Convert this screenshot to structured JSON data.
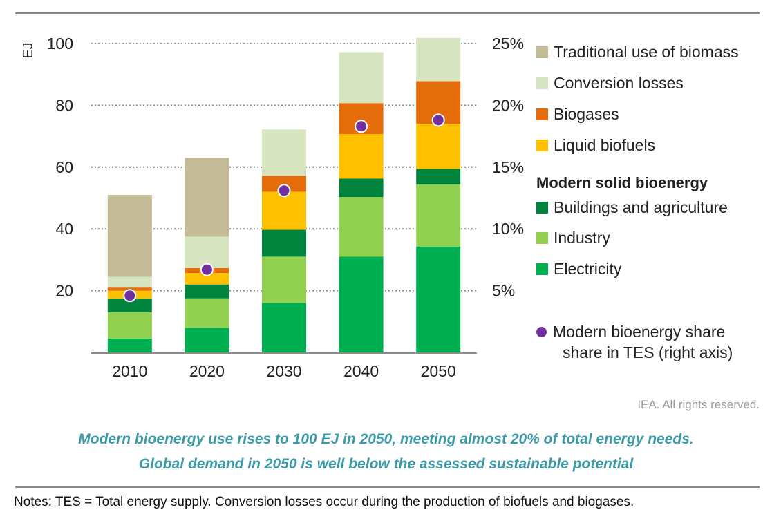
{
  "chart_data": {
    "type": "bar",
    "stacked": true,
    "categories": [
      "2010",
      "2020",
      "2030",
      "2040",
      "2050"
    ],
    "ylabel": "EJ",
    "ylim": [
      0,
      100
    ],
    "y_ticks": [
      "100",
      "80",
      "60",
      "40",
      "20"
    ],
    "y2lim": [
      0,
      25
    ],
    "y2_ticks": [
      "25%",
      "20%",
      "15%",
      "10%",
      "5%"
    ],
    "grid": "dotted horizontal",
    "series": [
      {
        "name": "Electricity",
        "color": "#00b050",
        "values": [
          4.5,
          8,
          16,
          31,
          34.3
        ]
      },
      {
        "name": "Industry",
        "color": "#92d050",
        "values": [
          8.5,
          9.5,
          15,
          19.3,
          20.1
        ]
      },
      {
        "name": "Buildings and agriculture",
        "color": "#00843d",
        "values": [
          4.5,
          4.5,
          8.7,
          6,
          5
        ]
      },
      {
        "name": "Liquid biofuels",
        "color": "#ffc000",
        "values": [
          2.5,
          3.7,
          12.3,
          14.4,
          14.6
        ]
      },
      {
        "name": "Biogases",
        "color": "#e46c0a",
        "values": [
          1,
          1.6,
          5.2,
          10,
          13.8
        ]
      },
      {
        "name": "Conversion losses",
        "color": "#d6e5bf",
        "values": [
          3.5,
          10.2,
          15,
          16.5,
          14
        ]
      },
      {
        "name": "Traditional use of biomass",
        "color": "#c4bc96",
        "values": [
          26.5,
          25.5,
          0,
          0,
          0
        ]
      }
    ],
    "share_series": {
      "name": "Modern bioenergy share share in TES (right axis)",
      "color": "#7030a0",
      "axis": "right",
      "values": [
        4.6,
        6.7,
        13.1,
        18.3,
        18.8
      ]
    }
  },
  "legend": {
    "items": [
      {
        "label": "Traditional use of biomass",
        "color": "#c4bc96"
      },
      {
        "label": "Conversion losses",
        "color": "#d6e5bf"
      },
      {
        "label": "Biogases",
        "color": "#e46c0a"
      },
      {
        "label": "Liquid biofuels",
        "color": "#ffc000"
      }
    ],
    "group_heading": "Modern solid bioenergy",
    "group_items": [
      {
        "label": "Buildings and agriculture",
        "color": "#00843d"
      },
      {
        "label": "Industry",
        "color": "#92d050"
      },
      {
        "label": "Electricity",
        "color": "#00b050"
      }
    ],
    "share_line1": "Modern bioenergy share",
    "share_line2": "share in TES (right axis)"
  },
  "credit": "IEA. All rights reserved.",
  "caption": {
    "line1": "Modern bioenergy use rises to 100 EJ in 2050, meeting almost 20% of total energy needs.",
    "line2": "Global demand in 2050 is well below the assessed sustainable potential"
  },
  "notes": "Notes: TES = Total energy supply. Conversion losses occur during the production of biofuels and biogases."
}
